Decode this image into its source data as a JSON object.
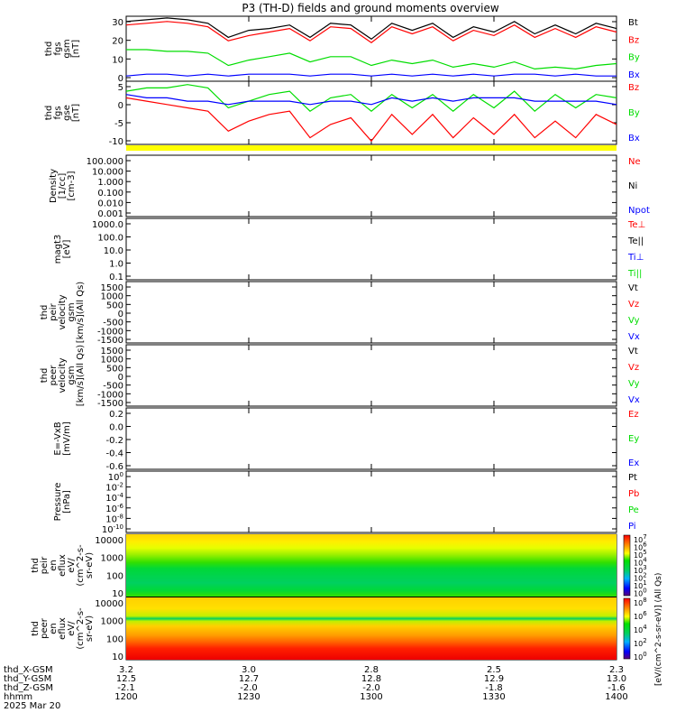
{
  "title": "P3 (TH-D) fields and ground moments overview",
  "colors": {
    "black": "#000000",
    "red": "#ff0000",
    "green": "#00dd00",
    "blue": "#0000ff",
    "yellow": "#ffff00"
  },
  "panels": [
    {
      "id": "p1",
      "ylabel": [
        "thd",
        "fgs",
        "gsm",
        "[nT]"
      ],
      "ticks": [
        "30",
        "20",
        "10",
        "0"
      ],
      "legend": [
        [
          "Bt",
          "black"
        ],
        [
          "Bz",
          "red"
        ],
        [
          "By",
          "green"
        ],
        [
          "Bx",
          "blue"
        ]
      ]
    },
    {
      "id": "p2",
      "ylabel": [
        "thd",
        "fgs",
        "gse",
        "[nT]"
      ],
      "ticks": [
        "5",
        "0",
        "-5",
        "-10"
      ],
      "legend": [
        [
          "Bz",
          "red"
        ],
        [
          "By",
          "green"
        ],
        [
          "Bx",
          "blue"
        ]
      ]
    },
    {
      "id": "p3",
      "ylabel": [
        "Density",
        "[1/cc]",
        "[cm-3]"
      ],
      "ticks": [
        "100.000",
        "10.000",
        "1.000",
        "0.100",
        "0.010",
        "0.001"
      ],
      "legend": [
        [
          "Ne",
          "red"
        ],
        [
          "Ni",
          "black"
        ],
        [
          "Npot",
          "blue"
        ]
      ]
    },
    {
      "id": "p4",
      "ylabel": [
        "magt3",
        "[eV]"
      ],
      "ticks": [
        "1000.0",
        "100.0",
        "10.0",
        "1.0",
        "0.1"
      ],
      "legend": [
        [
          "Te⊥",
          "red"
        ],
        [
          "Te||",
          "black"
        ],
        [
          "Ti⊥",
          "blue"
        ],
        [
          "Ti||",
          "green"
        ]
      ]
    },
    {
      "id": "p5",
      "ylabel": [
        "thd",
        "peir",
        "velocity",
        "gsm",
        "[km/s](All Qs)"
      ],
      "ticks": [
        "1500",
        "1000",
        "500",
        "0",
        "-500",
        "-1000",
        "-1500"
      ],
      "legend": [
        [
          "Vt",
          "black"
        ],
        [
          "Vz",
          "red"
        ],
        [
          "Vy",
          "green"
        ],
        [
          "Vx",
          "blue"
        ]
      ]
    },
    {
      "id": "p6",
      "ylabel": [
        "thd",
        "peer",
        "velocity",
        "gsm",
        "[km/s](All Qs)"
      ],
      "ticks": [
        "1500",
        "1000",
        "500",
        "0",
        "-500",
        "-1000",
        "-1500"
      ],
      "legend": [
        [
          "Vt",
          "black"
        ],
        [
          "Vz",
          "red"
        ],
        [
          "Vy",
          "green"
        ],
        [
          "Vx",
          "blue"
        ]
      ]
    },
    {
      "id": "p7",
      "ylabel": [
        "E=-VxB",
        "[mV/m]"
      ],
      "ticks": [
        "0.2",
        "0.0",
        "-0.2",
        "-0.4",
        "-0.6"
      ],
      "legend": [
        [
          "Ez",
          "red"
        ],
        [
          "Ey",
          "green"
        ],
        [
          "Ex",
          "blue"
        ]
      ]
    },
    {
      "id": "p8",
      "ylabel": [
        "Pressure",
        "[nPa]"
      ],
      "ticks": [
        "10^0",
        "10^-2",
        "10^-4",
        "10^-6",
        "10^-8",
        "10^-10"
      ],
      "legend": [
        [
          "Pt",
          "black"
        ],
        [
          "Pb",
          "red"
        ],
        [
          "Pe",
          "green"
        ],
        [
          "Pi",
          "blue"
        ]
      ]
    },
    {
      "id": "p9",
      "ylabel": [
        "thd",
        "peir",
        "en",
        "eflux",
        "eV/",
        "(cm^2-s-",
        "sr-eV)"
      ],
      "ticks": [
        "10000",
        "1000",
        "100",
        "10"
      ],
      "legend": []
    },
    {
      "id": "p10",
      "ylabel": [
        "thd",
        "peer",
        "en",
        "eflux",
        "eV/",
        "(cm^2-s-",
        "sr-eV)"
      ],
      "ticks": [
        "10000",
        "1000",
        "100",
        "10"
      ],
      "legend": []
    }
  ],
  "colorbar": {
    "label": "[eV/(cm^2-s-sr-eV)] (All Qs)",
    "ticks_top": [
      "10^7",
      "10^6",
      "10^5",
      "10^4",
      "10^3",
      "10^2",
      "10^1",
      "10^0"
    ],
    "ticks_bottom": [
      "10^8",
      "10^6",
      "10^4",
      "10^2",
      "10^0"
    ]
  },
  "xaxis": {
    "row_labels": [
      "thd_X-GSM",
      "thd_Y-GSM",
      "thd_Z-GSM",
      "hhmm",
      "2025 Mar 20"
    ],
    "columns": [
      [
        "3.2",
        "12.5",
        "-2.1",
        "1200"
      ],
      [
        "3.0",
        "12.7",
        "-2.0",
        "1230"
      ],
      [
        "2.8",
        "12.8",
        "-2.0",
        "1300"
      ],
      [
        "2.5",
        "12.9",
        "-1.8",
        "1330"
      ],
      [
        "2.3",
        "13.0",
        "-1.6",
        "1400"
      ]
    ]
  },
  "chart_data": [
    {
      "type": "line",
      "panel": "thd fgs gsm [nT]",
      "ylim": [
        -2,
        35
      ],
      "x_minutes": [
        0,
        5,
        10,
        15,
        20,
        25,
        30,
        35,
        40,
        45,
        50,
        55,
        60,
        65,
        70,
        75,
        80,
        85,
        90,
        95,
        100,
        105,
        110,
        115,
        120
      ],
      "series": [
        {
          "name": "Bt",
          "values": [
            32,
            33,
            34,
            33,
            31,
            23,
            27,
            28,
            30,
            23,
            31,
            30,
            22,
            31,
            27,
            31,
            23,
            29,
            26,
            32,
            25,
            30,
            25,
            31,
            28
          ]
        },
        {
          "name": "Bz",
          "values": [
            30,
            31,
            32,
            31,
            29,
            21,
            24,
            26,
            28,
            21,
            29,
            28,
            20,
            29,
            25,
            29,
            21,
            27,
            24,
            30,
            23,
            28,
            23,
            29,
            26
          ]
        },
        {
          "name": "By",
          "values": [
            16,
            16,
            15,
            15,
            14,
            7,
            10,
            12,
            14,
            9,
            12,
            12,
            7,
            10,
            8,
            10,
            6,
            8,
            6,
            9,
            5,
            6,
            5,
            7,
            8
          ]
        },
        {
          "name": "Bx",
          "values": [
            1,
            2,
            2,
            1,
            2,
            1,
            2,
            2,
            2,
            1,
            2,
            2,
            1,
            2,
            1,
            2,
            1,
            2,
            1,
            2,
            2,
            1,
            2,
            1,
            1
          ]
        }
      ]
    },
    {
      "type": "line",
      "panel": "thd fgs gse [nT]",
      "ylim": [
        -12,
        7
      ],
      "x_minutes": [
        0,
        5,
        10,
        15,
        20,
        25,
        30,
        35,
        40,
        45,
        50,
        55,
        60,
        65,
        70,
        75,
        80,
        85,
        90,
        95,
        100,
        105,
        110,
        115,
        120
      ],
      "series": [
        {
          "name": "Bz",
          "values": [
            2,
            1,
            0,
            -1,
            -2,
            -8,
            -5,
            -3,
            -2,
            -10,
            -6,
            -4,
            -11,
            -3,
            -9,
            -3,
            -10,
            -4,
            -9,
            -3,
            -10,
            -5,
            -10,
            -3,
            -6
          ]
        },
        {
          "name": "By",
          "values": [
            4,
            5,
            5,
            6,
            5,
            -1,
            1,
            3,
            4,
            -2,
            2,
            3,
            -2,
            3,
            -1,
            3,
            -2,
            3,
            -1,
            4,
            -2,
            3,
            -1,
            3,
            2
          ]
        },
        {
          "name": "Bx",
          "values": [
            3,
            2,
            2,
            1,
            1,
            0,
            1,
            1,
            1,
            0,
            1,
            1,
            0,
            2,
            1,
            2,
            1,
            2,
            2,
            2,
            1,
            1,
            1,
            1,
            0
          ]
        }
      ]
    },
    {
      "type": "heatmap",
      "panel": "thd peir en eflux eV/(cm^2-s-sr-eV)",
      "ylim": [
        10,
        10000
      ],
      "scale": "log"
    },
    {
      "type": "heatmap",
      "panel": "thd peer en eflux eV/(cm^2-s-sr-eV)",
      "ylim": [
        10,
        10000
      ],
      "scale": "log"
    }
  ]
}
